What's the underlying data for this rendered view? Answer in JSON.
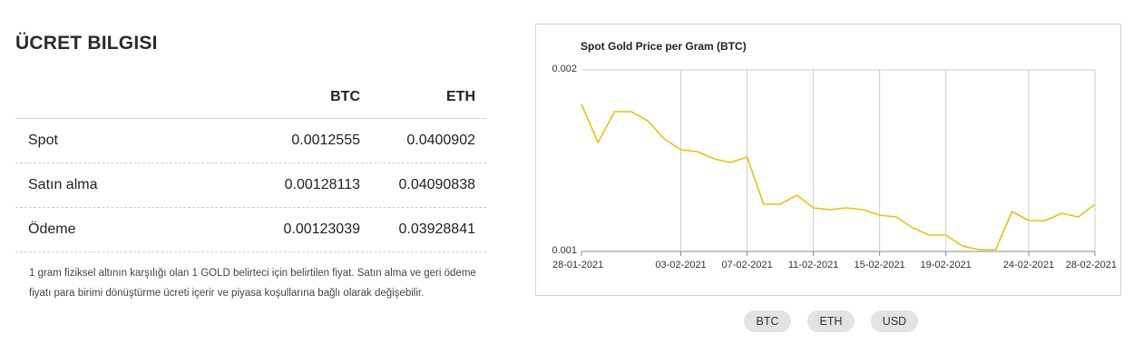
{
  "page": {
    "title": "ÜCRET BILGISI"
  },
  "table": {
    "headers": [
      "",
      "BTC",
      "ETH"
    ],
    "rows": [
      {
        "label": "Spot",
        "btc": "0.0012555",
        "eth": "0.0400902"
      },
      {
        "label": "Satın alma",
        "btc": "0.00128113",
        "eth": "0.04090838"
      },
      {
        "label": "Ödeme",
        "btc": "0.00123039",
        "eth": "0.03928841"
      }
    ]
  },
  "note": "1 gram fiziksel altının karşılığı olan 1 GOLD belirteci için belirtilen fiyat. Satın alma ve geri ödeme fiyatı para birimi dönüştürme ücreti içerir ve piyasa koşullarına bağlı olarak değişebilir.",
  "currency_buttons": [
    "BTC",
    "ETH",
    "USD"
  ],
  "colors": {
    "line": "#e8c20c",
    "grid": "#cccccc"
  },
  "chart_data": {
    "type": "line",
    "title": "Spot Gold Price per Gram (BTC)",
    "xlabel": "",
    "ylabel": "",
    "ylim": [
      0.001,
      0.002
    ],
    "yticks": [
      "0.002",
      "0.001"
    ],
    "xticks": [
      "28-01-2021",
      "03-02-2021",
      "07-02-2021",
      "11-02-2021",
      "15-02-2021",
      "19-02-2021",
      "24-02-2021",
      "28-02-2021"
    ],
    "x_range": [
      "28-01-2021",
      "28-02-2021"
    ],
    "grid": "vertical",
    "legend": "none",
    "series": [
      {
        "x": [
          "28-01-2021",
          "29-01-2021",
          "30-01-2021",
          "31-01-2021",
          "01-02-2021",
          "02-02-2021",
          "03-02-2021",
          "04-02-2021",
          "05-02-2021",
          "06-02-2021",
          "07-02-2021",
          "08-02-2021",
          "09-02-2021",
          "10-02-2021",
          "11-02-2021",
          "12-02-2021",
          "13-02-2021",
          "14-02-2021",
          "15-02-2021",
          "16-02-2021",
          "17-02-2021",
          "18-02-2021",
          "19-02-2021",
          "20-02-2021",
          "21-02-2021",
          "22-02-2021",
          "23-02-2021",
          "24-02-2021",
          "25-02-2021",
          "26-02-2021",
          "27-02-2021",
          "28-02-2021"
        ],
        "values": [
          0.00181,
          0.0016,
          0.00177,
          0.00177,
          0.00172,
          0.00162,
          0.00156,
          0.00155,
          0.00151,
          0.00149,
          0.00152,
          0.00126,
          0.00126,
          0.00131,
          0.00124,
          0.00123,
          0.00124,
          0.00123,
          0.0012,
          0.00119,
          0.00113,
          0.00109,
          0.00109,
          0.00103,
          0.00101,
          0.00101,
          0.00122,
          0.00117,
          0.00117,
          0.00121,
          0.00119,
          0.00126
        ]
      }
    ]
  }
}
